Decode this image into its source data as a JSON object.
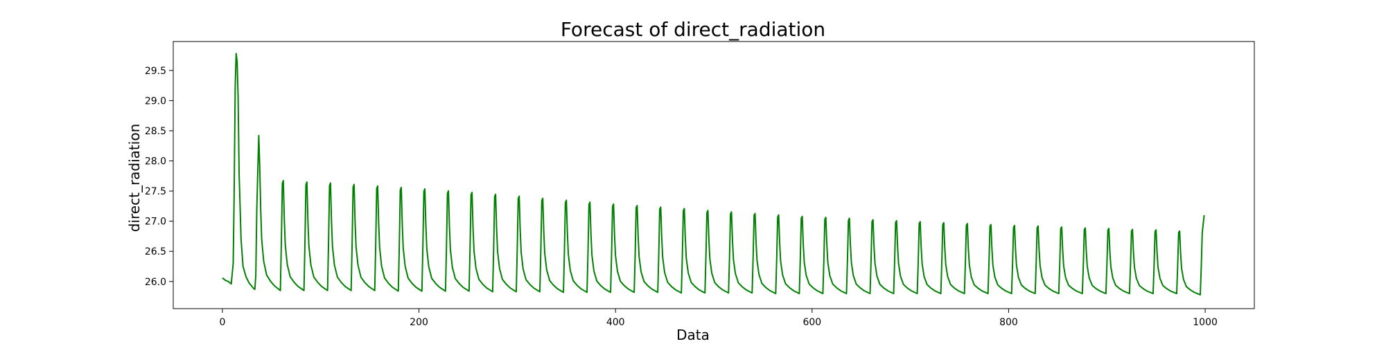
{
  "chart_data": {
    "type": "line",
    "title": "Forecast of direct_radiation",
    "xlabel": "Data",
    "ylabel": "direct_radiation",
    "xlim": [
      -50,
      1050
    ],
    "ylim": [
      25.55,
      29.98
    ],
    "x_ticks": [
      0,
      200,
      400,
      600,
      800,
      1000
    ],
    "y_ticks": [
      26.0,
      26.5,
      27.0,
      27.5,
      28.0,
      28.5,
      29.0,
      29.5
    ],
    "grid": false,
    "legend": "none",
    "series": [
      {
        "color": "#008000",
        "period": 24,
        "n_points": 1000,
        "first_cycle": {
          "x": [
            0,
            3,
            6,
            9,
            11,
            12,
            13,
            14,
            15,
            16,
            17,
            19,
            21,
            24,
            27,
            30,
            32,
            33,
            34,
            35
          ],
          "y": [
            26.06,
            26.02,
            26.0,
            25.96,
            26.3,
            27.5,
            29.2,
            29.78,
            29.65,
            29.05,
            27.8,
            26.7,
            26.25,
            26.08,
            25.98,
            25.92,
            25.88,
            25.87,
            26.1,
            27.2
          ]
        },
        "peaks": {
          "x": [
            37,
            61,
            85,
            109,
            133,
            157,
            181,
            205,
            229,
            253,
            277,
            301,
            325,
            349,
            373,
            397,
            421,
            445,
            469,
            493,
            517,
            541,
            565,
            589,
            613,
            637,
            661,
            685,
            709,
            733,
            757,
            781,
            805,
            829,
            853,
            877,
            901,
            925,
            949,
            973
          ],
          "y": [
            28.42,
            28.13,
            28.1,
            28.08,
            28.05,
            28.02,
            27.99,
            27.96,
            27.92,
            27.89,
            27.85,
            27.81,
            27.77,
            27.73,
            27.69,
            27.65,
            27.62,
            27.59,
            27.56,
            27.52,
            27.49,
            27.46,
            27.43,
            27.4,
            27.38,
            27.36,
            27.33,
            27.31,
            27.29,
            27.27,
            27.25,
            27.23,
            27.21,
            27.2,
            27.18,
            27.16,
            27.15,
            27.13,
            27.12,
            27.1
          ]
        },
        "troughs": {
          "x": [
            59,
            83,
            107,
            131,
            155,
            179,
            203,
            227,
            251,
            275,
            299,
            323,
            347,
            371,
            395,
            419,
            443,
            467,
            491,
            515,
            539,
            563,
            587,
            611,
            635,
            659,
            683,
            707,
            731,
            755,
            779,
            803,
            827,
            851,
            875,
            899,
            923,
            947,
            971,
            995
          ],
          "y": [
            25.85,
            25.85,
            25.85,
            25.85,
            25.85,
            25.84,
            25.84,
            25.84,
            25.84,
            25.83,
            25.83,
            25.83,
            25.82,
            25.82,
            25.82,
            25.82,
            25.82,
            25.81,
            25.81,
            25.81,
            25.81,
            25.8,
            25.8,
            25.8,
            25.8,
            25.8,
            25.8,
            25.8,
            25.8,
            25.8,
            25.8,
            25.8,
            25.8,
            25.8,
            25.8,
            25.8,
            25.8,
            25.8,
            25.8,
            25.78
          ]
        },
        "last_point": {
          "x": 999,
          "y": 27.1
        }
      }
    ]
  }
}
